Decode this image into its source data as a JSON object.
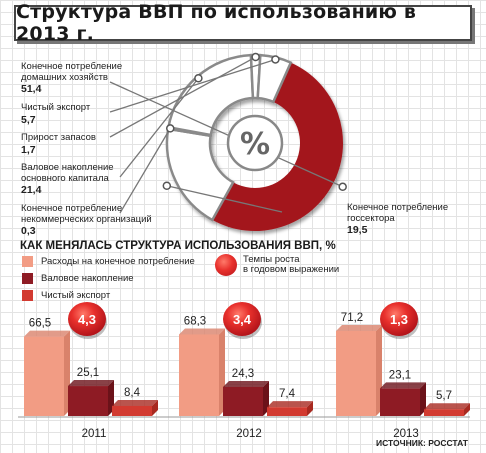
{
  "title": "Структура ВВП по использованию в 2013 г.",
  "section_title": "КАК МЕНЯЛАСЬ СТРУКТУРА ИСПОЛЬЗОВАНИЯ ВВП, %",
  "source": "ИСТОЧНИК: РОССТАТ",
  "colors": {
    "consumption_bar": "#f29c84",
    "accumulation_bar": "#8e1b24",
    "net_export_bar": "#d23a30",
    "donut_main": "#a3161d",
    "donut_rest": "#ffffff",
    "growth_circle": "#e8302c"
  },
  "legend": {
    "consumption": "Расходы на конечное потребление",
    "accumulation": "Валовое накопление",
    "net_export": "Чистый экспорт",
    "growth_line1": "Темпы роста",
    "growth_line2": "в годовом выражении"
  },
  "chart_data": [
    {
      "type": "pie",
      "title": "Структура ВВП по использованию в 2013 г.",
      "center_label": "%",
      "slices": [
        {
          "label_line1": "Конечное потребление",
          "label_line2": "домашних хозяйств",
          "value": "51,4",
          "number": 51.4
        },
        {
          "label_line1": "Конечное потребление",
          "label_line2": "госсектора",
          "value": "19,5",
          "number": 19.5
        },
        {
          "label_line1": "Конечное потребление",
          "label_line2": "некоммерческих организаций",
          "value": "0,3",
          "number": 0.3
        },
        {
          "label_line1": "Валовое накопление",
          "label_line2": "основного капитала",
          "value": "21,4",
          "number": 21.4
        },
        {
          "label_line1": "Прирост запасов",
          "label_line2": "",
          "value": "1,7",
          "number": 1.7
        },
        {
          "label_line1": "Чистый экспорт",
          "label_line2": "",
          "value": "5,7",
          "number": 5.7
        }
      ]
    },
    {
      "type": "bar",
      "title": "КАК МЕНЯЛАСЬ СТРУКТУРА ИСПОЛЬЗОВАНИЯ ВВП, %",
      "categories": [
        "2011",
        "2012",
        "2013"
      ],
      "series": [
        {
          "name": "Расходы на конечное потребление",
          "values": [
            66.5,
            68.3,
            71.2
          ],
          "labels": [
            "66,5",
            "68,3",
            "71,2"
          ]
        },
        {
          "name": "Валовое накопление",
          "values": [
            25.1,
            24.3,
            23.1
          ],
          "labels": [
            "25,1",
            "24,3",
            "23,1"
          ]
        },
        {
          "name": "Чистый экспорт",
          "values": [
            8.4,
            7.4,
            5.7
          ],
          "labels": [
            "8,4",
            "7,4",
            "5,7"
          ]
        }
      ],
      "growth_rates": [
        "4,3",
        "3,4",
        "1,3"
      ],
      "growth_name": "Темпы роста в годовом выражении",
      "ylim": [
        0,
        80
      ]
    }
  ]
}
